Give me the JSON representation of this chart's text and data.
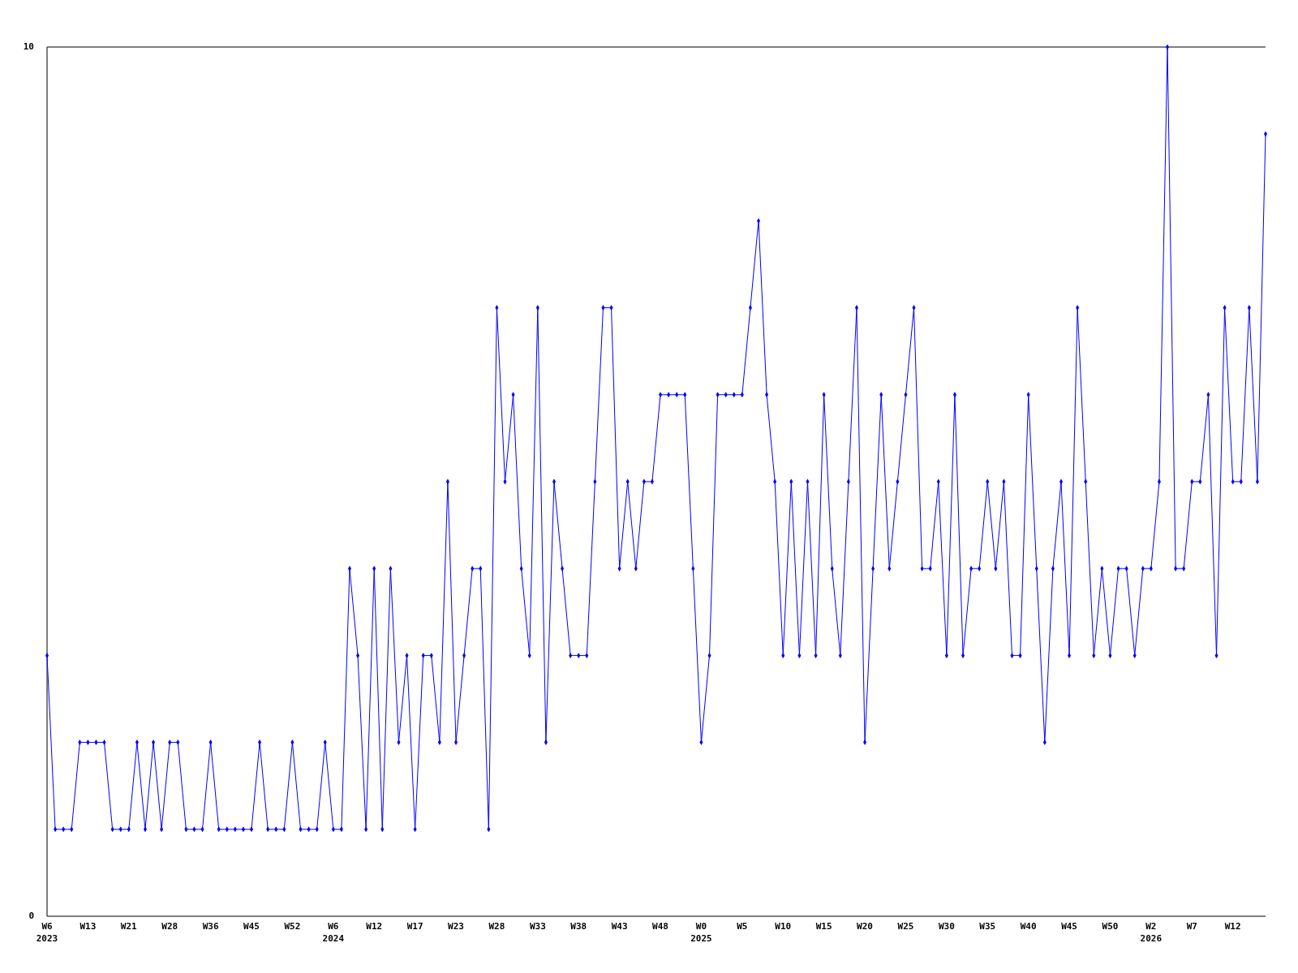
{
  "chart_data": {
    "type": "line",
    "marker": "diamond",
    "grid": false,
    "categories": [
      "W6\n2023",
      null,
      null,
      null,
      null,
      "W13",
      null,
      null,
      null,
      null,
      "W21",
      null,
      null,
      null,
      null,
      "W28",
      null,
      null,
      null,
      null,
      "W36",
      null,
      null,
      null,
      null,
      "W45",
      null,
      null,
      null,
      null,
      "W52",
      null,
      null,
      null,
      null,
      "W6\n2024",
      null,
      null,
      null,
      null,
      "W12",
      null,
      null,
      null,
      null,
      "W17",
      null,
      null,
      null,
      null,
      "W23",
      null,
      null,
      null,
      null,
      "W28",
      null,
      null,
      null,
      null,
      "W33",
      null,
      null,
      null,
      null,
      "W38",
      null,
      null,
      null,
      null,
      "W43",
      null,
      null,
      null,
      null,
      "W48",
      null,
      null,
      null,
      null,
      "W0\n2025",
      null,
      null,
      null,
      null,
      "W5",
      null,
      null,
      null,
      null,
      "W10",
      null,
      null,
      null,
      null,
      "W15",
      null,
      null,
      null,
      null,
      "W20",
      null,
      null,
      null,
      null,
      "W25",
      null,
      null,
      null,
      null,
      "W30",
      null,
      null,
      null,
      null,
      "W35",
      null,
      null,
      null,
      null,
      "W40",
      null,
      null,
      null,
      null,
      "W45",
      null,
      null,
      null,
      null,
      "W50",
      null,
      null,
      null,
      null,
      "W2\n2026",
      null,
      null,
      null,
      null,
      "W7",
      null,
      null,
      null,
      null,
      "W12",
      null,
      null,
      null,
      null
    ],
    "series": [
      {
        "color": "#0000ff",
        "values": [
          3,
          1,
          1,
          1,
          2,
          2,
          2,
          2,
          1,
          1,
          1,
          2,
          1,
          2,
          1,
          2,
          2,
          1,
          1,
          1,
          2,
          1,
          1,
          1,
          1,
          1,
          2,
          1,
          1,
          1,
          2,
          1,
          1,
          1,
          2,
          1,
          1,
          4,
          3,
          1,
          4,
          1,
          4,
          2,
          3,
          1,
          3,
          3,
          2,
          5,
          2,
          3,
          4,
          4,
          1,
          7,
          5,
          6,
          4,
          3,
          7,
          2,
          5,
          4,
          3,
          3,
          3,
          5,
          7,
          7,
          4,
          5,
          4,
          5,
          5,
          6,
          6,
          6,
          6,
          4,
          2,
          3,
          6,
          6,
          6,
          6,
          7,
          8,
          6,
          5,
          3,
          5,
          3,
          5,
          3,
          6,
          4,
          3,
          5,
          7,
          2,
          4,
          6,
          4,
          5,
          6,
          7,
          4,
          4,
          5,
          3,
          6,
          3,
          4,
          4,
          5,
          4,
          5,
          3,
          3,
          6,
          4,
          2,
          4,
          5,
          3,
          7,
          5,
          3,
          4,
          3,
          4,
          4,
          3,
          4,
          4,
          5,
          10,
          4,
          4,
          5,
          5,
          6,
          3,
          7,
          5,
          5,
          7,
          5,
          9
        ]
      }
    ],
    "ylim": [
      0,
      10
    ],
    "yticks": [
      0,
      10
    ]
  }
}
